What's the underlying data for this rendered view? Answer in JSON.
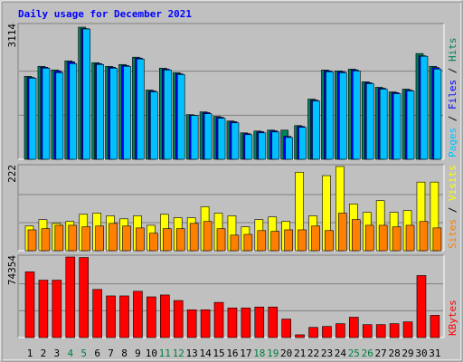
{
  "title": "Daily usage for December 2021",
  "categories": [
    "1",
    "2",
    "3",
    "4",
    "5",
    "6",
    "7",
    "8",
    "9",
    "10",
    "11",
    "12",
    "13",
    "14",
    "15",
    "16",
    "17",
    "18",
    "19",
    "20",
    "21",
    "22",
    "23",
    "24",
    "25",
    "26",
    "27",
    "28",
    "29",
    "30",
    "31"
  ],
  "weekend_categories": [
    "4",
    "5",
    "11",
    "12",
    "18",
    "19",
    "25",
    "26"
  ],
  "weekend_color": "#008040",
  "chart_data": [
    {
      "type": "bar",
      "ylim": [
        0,
        3114
      ],
      "yticks": [
        3114
      ],
      "grid": true,
      "legend": "right",
      "series": [
        {
          "name": "Hits",
          "color": "#00805c",
          "values": [
            1955,
            2191,
            2105,
            2320,
            3114,
            2277,
            2191,
            2234,
            2406,
            1632,
            2148,
            2040,
            1052,
            1117,
            1009,
            902,
            623,
            666,
            687,
            687,
            795,
            1418,
            2105,
            2083,
            2126,
            1826,
            1697,
            1589,
            1654,
            2492,
            2191
          ]
        },
        {
          "name": "Files",
          "color": "#0000ff",
          "values": [
            1930,
            2170,
            2080,
            2295,
            3080,
            2255,
            2170,
            2210,
            2385,
            1610,
            2125,
            2015,
            1035,
            1100,
            990,
            885,
            605,
            650,
            670,
            540,
            775,
            1395,
            2085,
            2065,
            2105,
            1805,
            1675,
            1570,
            1630,
            2440,
            2160
          ]
        },
        {
          "name": "Pages",
          "color": "#00c0ff",
          "values": [
            1912,
            2148,
            2040,
            2255,
            3071,
            2234,
            2148,
            2191,
            2363,
            1589,
            2105,
            1997,
            1031,
            1074,
            966,
            859,
            580,
            623,
            644,
            515,
            752,
            1375,
            2062,
            2040,
            2083,
            1783,
            1654,
            1546,
            1611,
            2427,
            2126
          ]
        }
      ]
    },
    {
      "type": "bar",
      "ylim": [
        0,
        222
      ],
      "yticks": [
        222
      ],
      "grid": true,
      "legend": "right",
      "series": [
        {
          "name": "Visits",
          "color": "#ffff00",
          "values": [
            65,
            82,
            72,
            77,
            96,
            99,
            92,
            84,
            92,
            67,
            96,
            87,
            87,
            116,
            99,
            92,
            63,
            82,
            89,
            77,
            207,
            92,
            198,
            222,
            123,
            101,
            132,
            101,
            106,
            181,
            181
          ]
        },
        {
          "name": "Sites",
          "color": "#ff8000",
          "values": [
            55,
            58,
            67,
            67,
            63,
            65,
            72,
            65,
            60,
            46,
            58,
            58,
            72,
            77,
            58,
            41,
            43,
            53,
            51,
            55,
            55,
            65,
            53,
            99,
            82,
            67,
            67,
            63,
            67,
            77,
            60
          ]
        }
      ]
    },
    {
      "type": "bar",
      "ylim": [
        0,
        74354
      ],
      "yticks": [
        74354
      ],
      "grid": true,
      "legend": "right",
      "series": [
        {
          "name": "KBytes",
          "color": "#ff0000",
          "values": [
            60680,
            52990,
            52990,
            74354,
            73900,
            44440,
            38460,
            38460,
            42730,
            37600,
            39310,
            34180,
            25640,
            25640,
            32480,
            27350,
            27350,
            28200,
            28200,
            17090,
            2560,
            9400,
            10260,
            12820,
            18800,
            11960,
            11960,
            12820,
            14530,
            57260,
            20510
          ]
        }
      ]
    }
  ]
}
